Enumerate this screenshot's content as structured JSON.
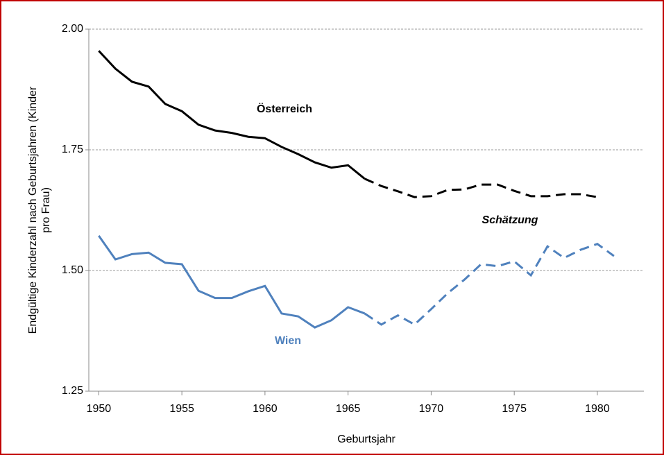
{
  "chart_data": {
    "type": "line",
    "xlabel": "Geburtsjahr",
    "ylabel": [
      "Endgültige Kinderzahl nach Geburtsjahren (Kinder",
      "pro Frau)"
    ],
    "annotation": "Schätzung",
    "x": [
      1950,
      1951,
      1952,
      1953,
      1954,
      1955,
      1956,
      1957,
      1958,
      1959,
      1960,
      1961,
      1962,
      1963,
      1964,
      1965,
      1966,
      1967,
      1968,
      1969,
      1970,
      1971,
      1972,
      1973,
      1974,
      1975,
      1976,
      1977,
      1978,
      1979,
      1980,
      1981
    ],
    "series": [
      {
        "name": "Österreich",
        "color": "#000000",
        "dashed": false,
        "values": [
          1.955,
          1.918,
          1.891,
          1.881,
          1.845,
          1.83,
          1.802,
          1.79,
          1.785,
          1.777,
          1.774,
          1.756,
          1.741,
          1.724,
          1.713,
          1.718,
          1.69,
          null,
          null,
          null,
          null,
          null,
          null,
          null,
          null,
          null,
          null,
          null,
          null,
          null,
          null,
          null
        ]
      },
      {
        "color": "#000000",
        "dashed": true,
        "values": [
          null,
          null,
          null,
          null,
          null,
          null,
          null,
          null,
          null,
          null,
          null,
          null,
          null,
          null,
          null,
          null,
          1.69,
          1.675,
          1.664,
          1.652,
          1.654,
          1.667,
          1.668,
          1.678,
          1.678,
          1.665,
          1.654,
          1.654,
          1.658,
          1.658,
          1.652,
          null
        ]
      },
      {
        "name": "Wien",
        "color": "#4f81bd",
        "dashed": false,
        "values": [
          1.572,
          1.523,
          1.534,
          1.537,
          1.516,
          1.513,
          1.458,
          1.443,
          1.443,
          1.457,
          1.468,
          1.411,
          1.405,
          1.382,
          1.397,
          1.424,
          1.411,
          null,
          null,
          null,
          null,
          null,
          null,
          null,
          null,
          null,
          null,
          null,
          null,
          null,
          null,
          null
        ]
      },
      {
        "color": "#4f81bd",
        "dashed": true,
        "values": [
          null,
          null,
          null,
          null,
          null,
          null,
          null,
          null,
          null,
          null,
          null,
          null,
          null,
          null,
          null,
          null,
          1.411,
          1.388,
          1.407,
          1.388,
          1.42,
          1.453,
          1.481,
          1.513,
          1.509,
          1.519,
          1.49,
          1.55,
          1.526,
          1.543,
          1.555,
          1.53
        ]
      }
    ],
    "xlim": [
      1949.4,
      1982.8
    ],
    "ylim": [
      1.25,
      2.0
    ],
    "xticks": [
      1950,
      1955,
      1960,
      1965,
      1970,
      1975,
      1980
    ],
    "yticks": [
      {
        "value": 1.25,
        "label": "1.25"
      },
      {
        "value": 1.5,
        "label": "1.50"
      },
      {
        "value": 1.75,
        "label": "1.75"
      },
      {
        "value": 2.0,
        "label": "2.00"
      }
    ],
    "grid": true
  }
}
